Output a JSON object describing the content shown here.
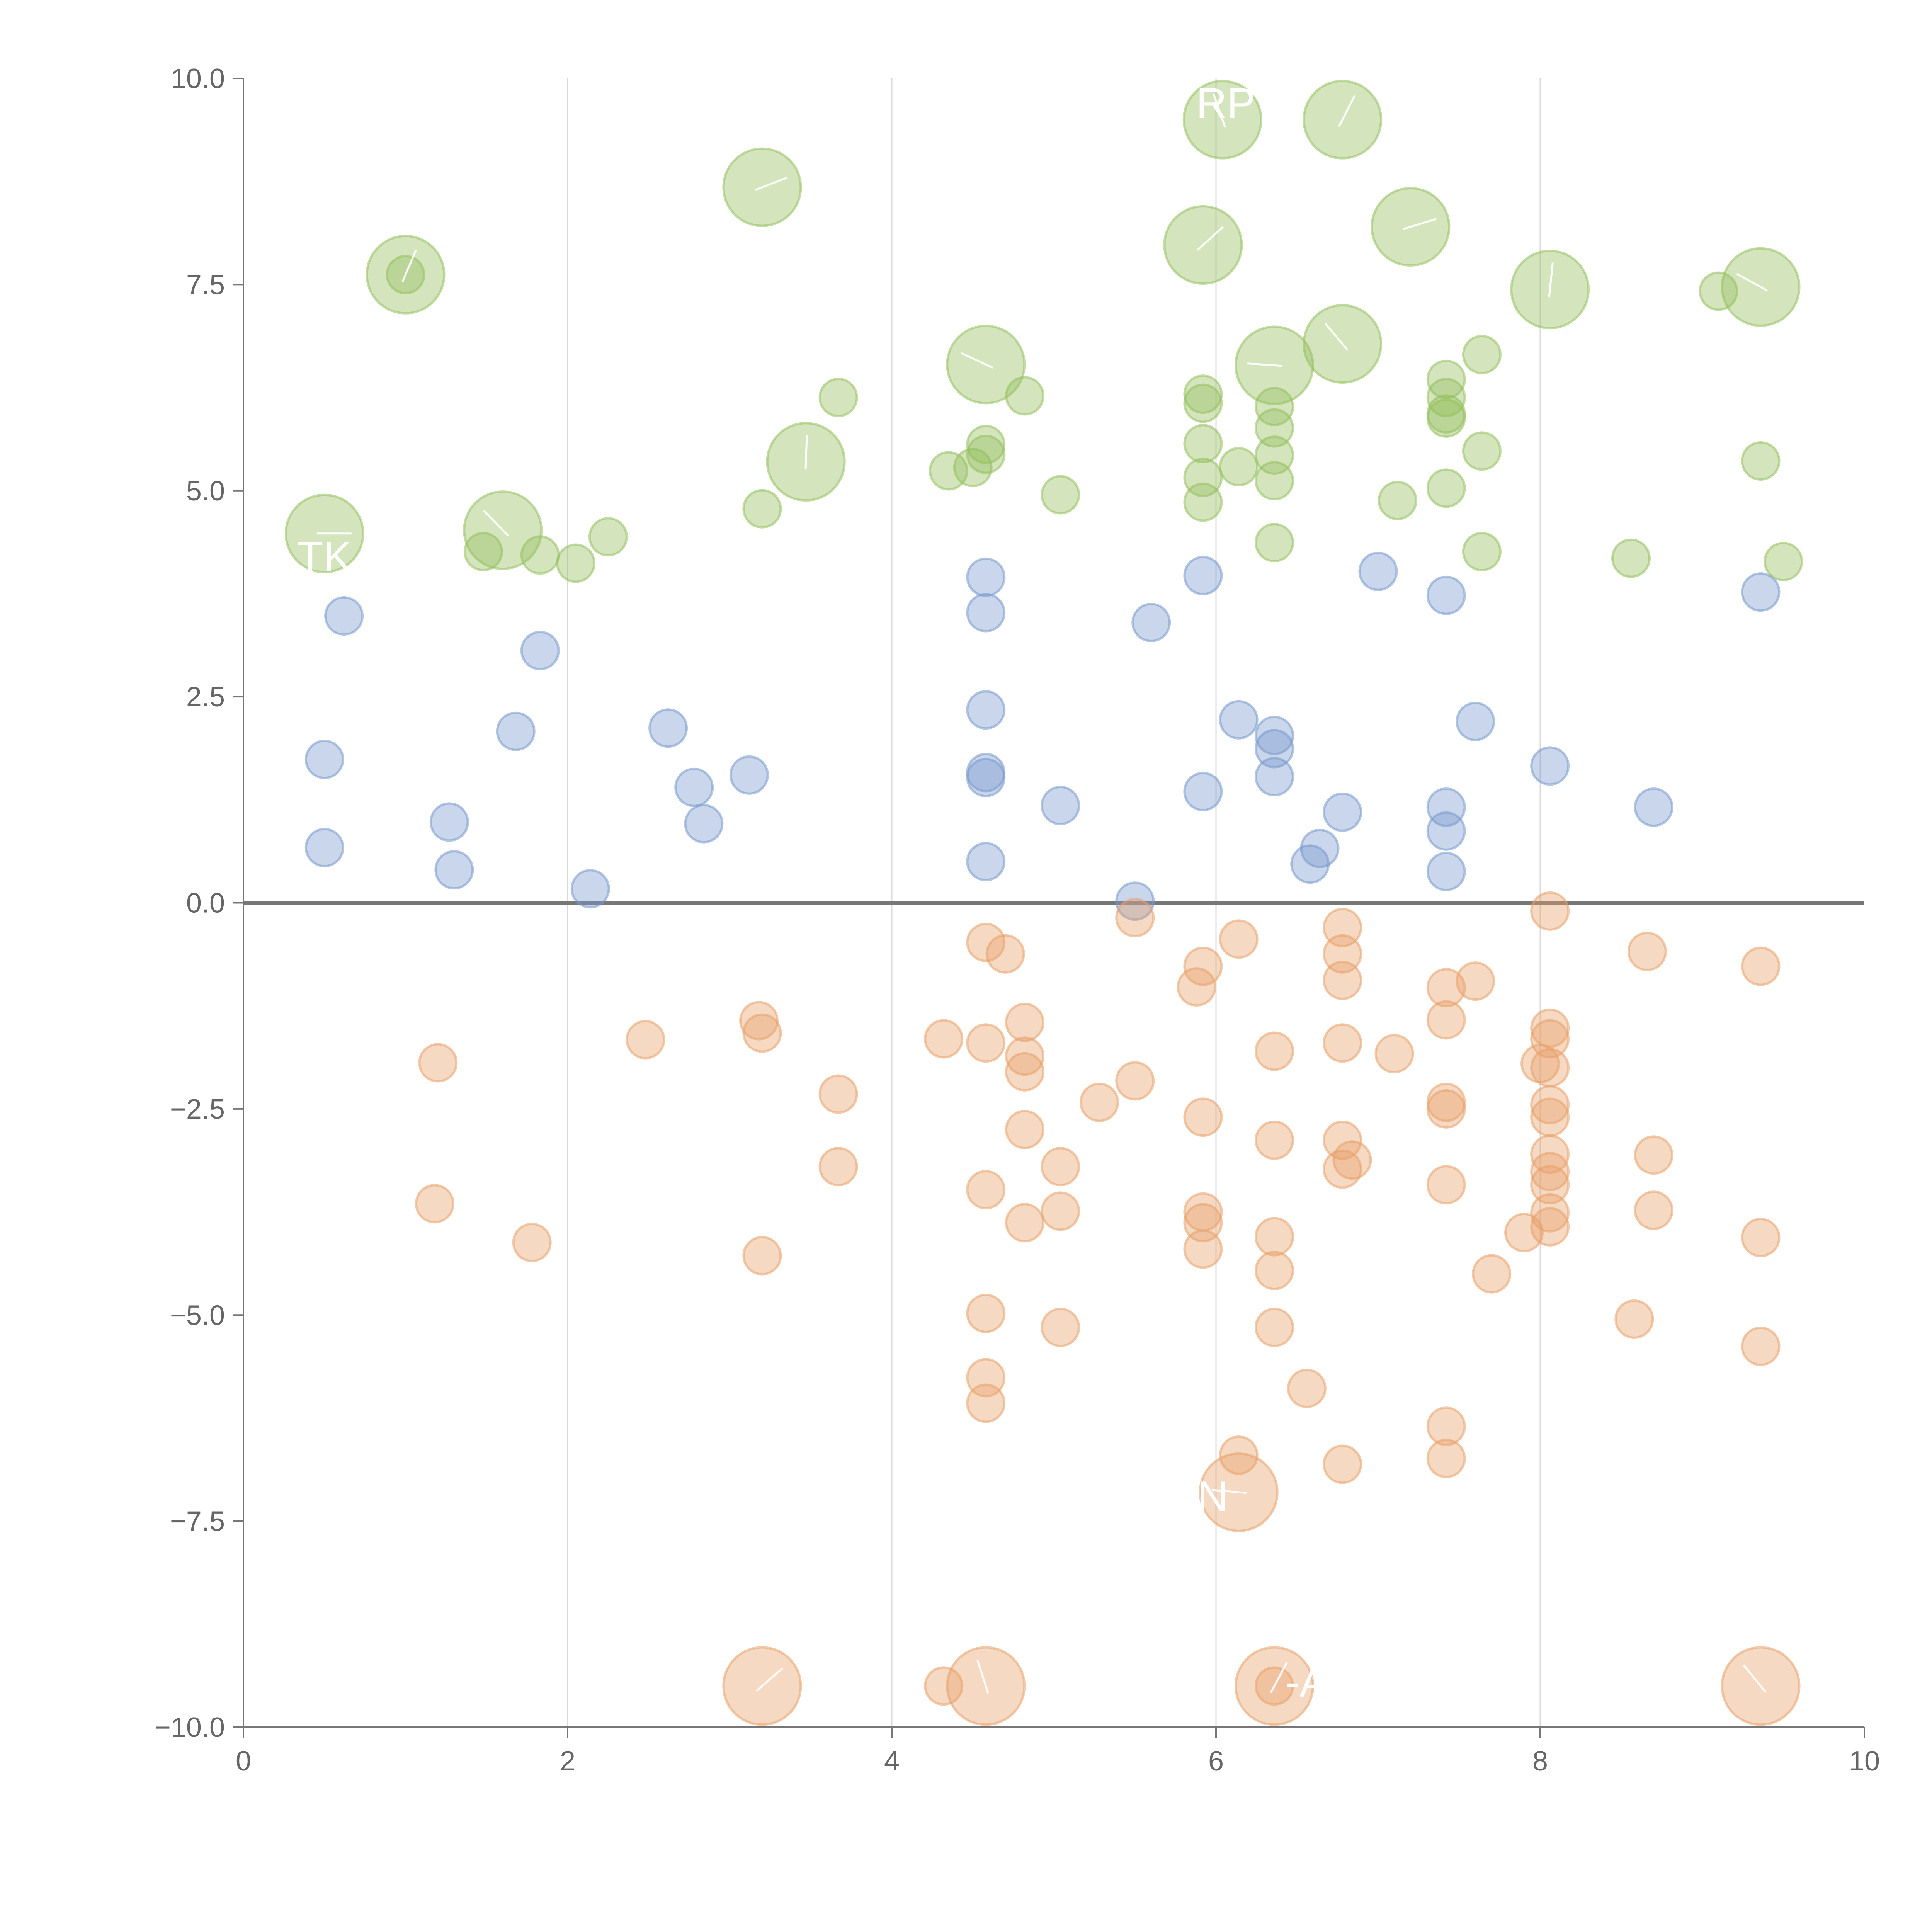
{
  "chart_data": {
    "type": "scatter",
    "title": "",
    "xlabel": "",
    "ylabel": "",
    "xlim": [
      0,
      10
    ],
    "ylim": [
      -10,
      10
    ],
    "grid": "vertical lines at x = 2, 4, 6, 8",
    "legend": "none",
    "x_ticks": [
      "0",
      "2",
      "4",
      "6",
      "8",
      "10"
    ],
    "y_ticks": [
      "10.0",
      "7.5",
      "5.0",
      "2.5",
      "0.0",
      "−2.5",
      "−5.0",
      "−7.5",
      "−10.0"
    ],
    "zero_line": 0,
    "series": [
      {
        "name": "green",
        "color": "#93bf5c",
        "points": [
          [
            1.0,
            7.62
          ],
          [
            1.48,
            4.26
          ],
          [
            1.83,
            4.22
          ],
          [
            2.05,
            4.12
          ],
          [
            2.25,
            4.44
          ],
          [
            3.2,
            4.78
          ],
          [
            3.67,
            6.13
          ],
          [
            4.35,
            5.24
          ],
          [
            4.5,
            5.28
          ],
          [
            4.58,
            5.56
          ],
          [
            4.58,
            5.44
          ],
          [
            4.82,
            6.15
          ],
          [
            5.04,
            4.95
          ],
          [
            5.92,
            6.17
          ],
          [
            5.92,
            6.06
          ],
          [
            5.92,
            5.57
          ],
          [
            5.92,
            5.16
          ],
          [
            5.92,
            4.86
          ],
          [
            6.14,
            5.29
          ],
          [
            6.36,
            6.02
          ],
          [
            6.36,
            5.76
          ],
          [
            6.36,
            5.43
          ],
          [
            6.36,
            5.12
          ],
          [
            6.36,
            4.37
          ],
          [
            7.12,
            4.88
          ],
          [
            7.42,
            6.35
          ],
          [
            7.42,
            6.13
          ],
          [
            7.42,
            5.93
          ],
          [
            7.42,
            5.88
          ],
          [
            7.42,
            5.03
          ],
          [
            7.64,
            6.65
          ],
          [
            7.64,
            5.48
          ],
          [
            7.64,
            4.26
          ],
          [
            8.56,
            4.18
          ],
          [
            9.1,
            7.42
          ],
          [
            9.36,
            5.36
          ],
          [
            9.5,
            4.14
          ]
        ]
      },
      {
        "name": "green-large",
        "color": "#93bf5c",
        "points": [
          [
            0.5,
            4.48
          ],
          [
            1.0,
            7.62
          ],
          [
            1.6,
            4.52
          ],
          [
            3.2,
            8.68
          ],
          [
            3.47,
            5.35
          ],
          [
            4.58,
            6.53
          ],
          [
            5.92,
            7.98
          ],
          [
            6.04,
            9.5
          ],
          [
            6.36,
            6.52
          ],
          [
            6.78,
            9.5
          ],
          [
            6.78,
            6.78
          ],
          [
            7.2,
            8.2
          ],
          [
            8.06,
            7.44
          ],
          [
            9.36,
            7.47
          ]
        ]
      },
      {
        "name": "blue",
        "color": "#7799cc",
        "points": [
          [
            0.5,
            1.74
          ],
          [
            0.5,
            0.67
          ],
          [
            0.62,
            3.48
          ],
          [
            1.27,
            0.98
          ],
          [
            1.3,
            0.4
          ],
          [
            1.68,
            2.08
          ],
          [
            1.83,
            3.06
          ],
          [
            2.14,
            0.17
          ],
          [
            2.62,
            2.12
          ],
          [
            2.78,
            1.4
          ],
          [
            2.84,
            0.96
          ],
          [
            3.12,
            1.55
          ],
          [
            4.58,
            3.95
          ],
          [
            4.58,
            3.52
          ],
          [
            4.58,
            2.34
          ],
          [
            4.58,
            1.58
          ],
          [
            4.58,
            1.52
          ],
          [
            4.58,
            0.5
          ],
          [
            5.04,
            1.18
          ],
          [
            5.5,
            0.02
          ],
          [
            5.6,
            3.4
          ],
          [
            5.92,
            3.97
          ],
          [
            5.92,
            1.35
          ],
          [
            6.14,
            2.22
          ],
          [
            6.36,
            2.03
          ],
          [
            6.36,
            1.87
          ],
          [
            6.36,
            1.53
          ],
          [
            6.58,
            0.47
          ],
          [
            6.64,
            0.66
          ],
          [
            6.78,
            1.1
          ],
          [
            7.0,
            4.02
          ],
          [
            7.42,
            3.73
          ],
          [
            7.42,
            1.16
          ],
          [
            7.42,
            0.87
          ],
          [
            7.42,
            0.38
          ],
          [
            7.6,
            2.2
          ],
          [
            8.06,
            1.66
          ],
          [
            8.7,
            1.16
          ],
          [
            9.36,
            3.77
          ]
        ]
      },
      {
        "name": "orange",
        "color": "#e8a068",
        "points": [
          [
            1.18,
            -3.65
          ],
          [
            1.2,
            -1.94
          ],
          [
            1.78,
            -4.12
          ],
          [
            2.48,
            -1.66
          ],
          [
            3.18,
            -1.43
          ],
          [
            3.2,
            -1.58
          ],
          [
            3.2,
            -4.28
          ],
          [
            3.67,
            -2.32
          ],
          [
            3.67,
            -3.2
          ],
          [
            4.32,
            -1.65
          ],
          [
            4.32,
            -9.5
          ],
          [
            4.58,
            -0.48
          ],
          [
            4.58,
            -1.7
          ],
          [
            4.58,
            -3.48
          ],
          [
            4.58,
            -4.98
          ],
          [
            4.58,
            -5.76
          ],
          [
            4.58,
            -6.07
          ],
          [
            4.7,
            -0.62
          ],
          [
            4.82,
            -1.45
          ],
          [
            4.82,
            -1.86
          ],
          [
            4.82,
            -2.05
          ],
          [
            4.82,
            -2.75
          ],
          [
            4.82,
            -3.88
          ],
          [
            5.04,
            -3.2
          ],
          [
            5.04,
            -3.74
          ],
          [
            5.04,
            -5.15
          ],
          [
            5.28,
            -2.42
          ],
          [
            5.5,
            -0.18
          ],
          [
            5.5,
            -2.16
          ],
          [
            5.88,
            -1.02
          ],
          [
            5.92,
            -0.77
          ],
          [
            5.92,
            -2.6
          ],
          [
            5.92,
            -3.75
          ],
          [
            5.92,
            -3.88
          ],
          [
            5.92,
            -4.2
          ],
          [
            6.14,
            -0.44
          ],
          [
            6.14,
            -6.7
          ],
          [
            6.36,
            -1.8
          ],
          [
            6.36,
            -2.88
          ],
          [
            6.36,
            -4.05
          ],
          [
            6.36,
            -4.46
          ],
          [
            6.36,
            -5.15
          ],
          [
            6.36,
            -9.5
          ],
          [
            6.56,
            -5.89
          ],
          [
            6.78,
            -0.3
          ],
          [
            6.78,
            -0.62
          ],
          [
            6.78,
            -0.94
          ],
          [
            6.78,
            -1.7
          ],
          [
            6.78,
            -2.88
          ],
          [
            6.78,
            -3.23
          ],
          [
            6.78,
            -6.81
          ],
          [
            6.84,
            -3.12
          ],
          [
            7.1,
            -1.83
          ],
          [
            7.42,
            -1.03
          ],
          [
            7.42,
            -1.42
          ],
          [
            7.42,
            -2.42
          ],
          [
            7.42,
            -2.5
          ],
          [
            7.42,
            -3.42
          ],
          [
            7.42,
            -6.35
          ],
          [
            7.42,
            -6.74
          ],
          [
            7.6,
            -0.95
          ],
          [
            7.7,
            -4.5
          ],
          [
            7.9,
            -4
          ],
          [
            8.0,
            -1.95
          ],
          [
            8.06,
            -0.1
          ],
          [
            8.06,
            -1.52
          ],
          [
            8.06,
            -1.65
          ],
          [
            8.06,
            -2.0
          ],
          [
            8.06,
            -2.45
          ],
          [
            8.06,
            -2.6
          ],
          [
            8.06,
            -3.05
          ],
          [
            8.06,
            -3.26
          ],
          [
            8.06,
            -3.42
          ],
          [
            8.06,
            -3.76
          ],
          [
            8.06,
            -3.93
          ],
          [
            8.58,
            -5.05
          ],
          [
            8.66,
            -0.59
          ],
          [
            8.7,
            -3.06
          ],
          [
            8.7,
            -3.73
          ],
          [
            9.36,
            -0.77
          ],
          [
            9.36,
            -4.06
          ],
          [
            9.36,
            -5.38
          ]
        ]
      },
      {
        "name": "orange-large",
        "color": "#e8a068",
        "points": [
          [
            3.2,
            -9.5
          ],
          [
            4.58,
            -9.5
          ],
          [
            6.14,
            -7.15
          ],
          [
            6.36,
            -9.5
          ],
          [
            9.36,
            -9.5
          ]
        ]
      }
    ],
    "annotations": [
      {
        "text": "RP",
        "x": 6.06,
        "y": 9.7
      },
      {
        "text": "TK",
        "x": 0.5,
        "y": 4.2
      },
      {
        "text": "N",
        "x": 5.98,
        "y": -7.2
      },
      {
        "text": "-A",
        "x": 6.56,
        "y": -9.45
      }
    ]
  }
}
